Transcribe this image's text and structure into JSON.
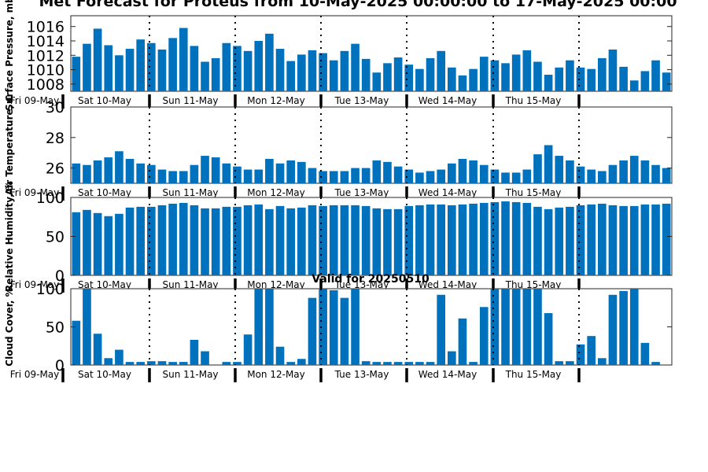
{
  "figure": {
    "title": "Met Forecast for Proteus from 10-May-2025 00:00:00 to 17-May-2025 00:00",
    "annotation": "Valid for 20250510"
  },
  "bar_color": "#0072bd",
  "day_labels": [
    "Fri 09-May",
    "Sat 10-May",
    "Sun 11-May",
    "Mon 12-May",
    "Tue 13-May",
    "Wed 14-May",
    "Thu 15-May"
  ],
  "chart_data": [
    {
      "type": "bar",
      "ylabel": "Surface Pressure, mb",
      "ylim": [
        1007,
        1017.5
      ],
      "yticks": [
        1008,
        1010,
        1012,
        1014,
        1016
      ],
      "grid": false,
      "values": [
        1011.8,
        1013.6,
        1015.7,
        1013.4,
        1012.0,
        1012.9,
        1014.2,
        1013.7,
        1012.8,
        1014.4,
        1015.8,
        1013.3,
        1011.1,
        1011.6,
        1013.7,
        1013.3,
        1012.6,
        1014.0,
        1015.0,
        1012.9,
        1011.2,
        1012.1,
        1012.7,
        1012.3,
        1011.3,
        1012.6,
        1013.6,
        1011.5,
        1009.6,
        1010.9,
        1011.7,
        1010.7,
        1010.1,
        1011.6,
        1012.6,
        1010.3,
        1009.2,
        1010.1,
        1011.8,
        1011.3,
        1010.9,
        1012.1,
        1012.7,
        1011.1,
        1009.3,
        1010.3,
        1011.3,
        1010.3,
        1010.1,
        1011.6,
        1012.8,
        1010.4,
        1008.5,
        1009.8,
        1011.3,
        1009.6
      ]
    },
    {
      "type": "bar",
      "ylabel": "Air Temperature, C",
      "ylim": [
        25,
        30
      ],
      "yticks": [
        26,
        28,
        30
      ],
      "grid": false,
      "values": [
        26.3,
        26.2,
        26.5,
        26.7,
        27.1,
        26.6,
        26.3,
        26.2,
        25.9,
        25.8,
        25.8,
        26.2,
        26.8,
        26.7,
        26.3,
        26.1,
        25.9,
        25.9,
        26.6,
        26.3,
        26.5,
        26.4,
        26.0,
        25.8,
        25.8,
        25.8,
        26.0,
        26.0,
        26.5,
        26.4,
        26.1,
        25.9,
        25.7,
        25.8,
        25.9,
        26.3,
        26.6,
        26.5,
        26.2,
        25.9,
        25.7,
        25.7,
        25.9,
        26.9,
        27.5,
        26.8,
        26.5,
        26.1,
        25.9,
        25.8,
        26.2,
        26.5,
        26.8,
        26.5,
        26.2,
        26.0
      ]
    },
    {
      "type": "bar",
      "ylabel": "Relative Humidity, %",
      "ylim": [
        0,
        100
      ],
      "yticks": [
        0,
        50,
        100
      ],
      "grid": false,
      "values": [
        81,
        84,
        80,
        76,
        79,
        87,
        88,
        88,
        90,
        92,
        93,
        90,
        86,
        86,
        88,
        88,
        90,
        91,
        85,
        89,
        86,
        87,
        90,
        89,
        90,
        90,
        90,
        89,
        86,
        85,
        85,
        89,
        90,
        91,
        91,
        90,
        91,
        92,
        93,
        94,
        95,
        94,
        93,
        88,
        85,
        87,
        88,
        90,
        91,
        92,
        90,
        89,
        89,
        91,
        91,
        92
      ]
    },
    {
      "type": "bar",
      "ylabel": "Cloud Cover, %",
      "ylim": [
        0,
        100
      ],
      "yticks": [
        0,
        50,
        100
      ],
      "grid": false,
      "values": [
        58,
        100,
        41,
        9,
        20,
        4,
        4,
        5,
        5,
        4,
        4,
        33,
        18,
        0,
        4,
        4,
        40,
        100,
        100,
        24,
        4,
        8,
        88,
        100,
        98,
        88,
        100,
        5,
        4,
        4,
        4,
        4,
        4,
        4,
        92,
        18,
        61,
        4,
        76,
        100,
        100,
        100,
        100,
        100,
        68,
        5,
        5,
        27,
        38,
        9,
        92,
        97,
        100,
        29,
        4,
        0
      ]
    }
  ]
}
